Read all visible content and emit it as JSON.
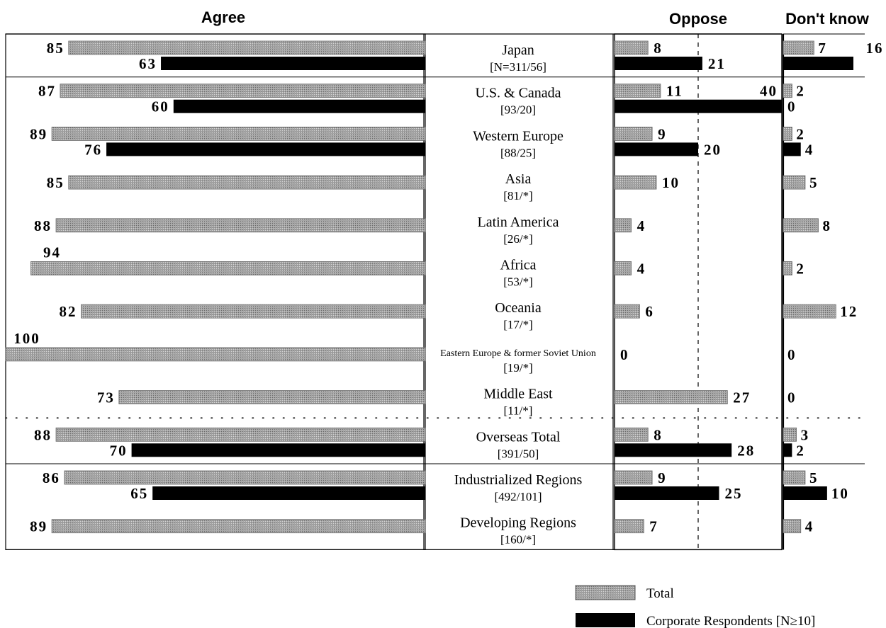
{
  "chart_data": {
    "type": "bar",
    "orientation": "horizontal",
    "column_headers": {
      "agree": "Agree",
      "oppose": "Oppose",
      "dont_know": "Don't know"
    },
    "legend": {
      "total": "Total",
      "corporate": "Corporate Respondents [N≥10]"
    },
    "colors": {
      "total": "#9c9c9c",
      "corporate": "#000000"
    },
    "scale_max": {
      "agree": 100,
      "oppose": 40,
      "dont_know": 16
    },
    "groups": [
      {
        "rows": [
          {
            "region": "Japan",
            "n": "[N=311/56]",
            "total": {
              "agree": 85,
              "oppose": 8,
              "dont_know": 7
            },
            "corporate": {
              "agree": 63,
              "oppose": 21,
              "dont_know": 16
            }
          }
        ]
      },
      {
        "rows": [
          {
            "region": "U.S. & Canada",
            "n": "[93/20]",
            "total": {
              "agree": 87,
              "oppose": 11,
              "dont_know": 2
            },
            "corporate": {
              "agree": 60,
              "oppose": 40,
              "dont_know": 0
            }
          },
          {
            "region": "Western Europe",
            "n": "[88/25]",
            "total": {
              "agree": 89,
              "oppose": 9,
              "dont_know": 2
            },
            "corporate": {
              "agree": 76,
              "oppose": 20,
              "dont_know": 4
            }
          },
          {
            "region": "Asia",
            "n": "[81/*]",
            "total": {
              "agree": 85,
              "oppose": 10,
              "dont_know": 5
            }
          },
          {
            "region": "Latin America",
            "n": "[26/*]",
            "total": {
              "agree": 88,
              "oppose": 4,
              "dont_know": 8
            }
          },
          {
            "region": "Africa",
            "n": "[53/*]",
            "total": {
              "agree": 94,
              "oppose": 4,
              "dont_know": 2
            }
          },
          {
            "region": "Oceania",
            "n": "[17/*]",
            "total": {
              "agree": 82,
              "oppose": 6,
              "dont_know": 12
            }
          },
          {
            "region": "Eastern Europe & former Soviet Union",
            "n": "[19/*]",
            "total": {
              "agree": 100,
              "oppose": 0,
              "dont_know": 0
            }
          },
          {
            "region": "Middle East",
            "n": "[11/*]",
            "total": {
              "agree": 73,
              "oppose": 27,
              "dont_know": 0
            }
          },
          {
            "region": "Overseas Total",
            "n": "[391/50]",
            "total": {
              "agree": 88,
              "oppose": 8,
              "dont_know": 3
            },
            "corporate": {
              "agree": 70,
              "oppose": 28,
              "dont_know": 2
            }
          }
        ]
      },
      {
        "rows": [
          {
            "region": "Industrialized Regions",
            "n": "[492/101]",
            "total": {
              "agree": 86,
              "oppose": 9,
              "dont_know": 5
            },
            "corporate": {
              "agree": 65,
              "oppose": 25,
              "dont_know": 10
            }
          },
          {
            "region": "Developing Regions",
            "n": "[160/*]",
            "total": {
              "agree": 89,
              "oppose": 7,
              "dont_know": 4
            }
          }
        ]
      }
    ]
  }
}
